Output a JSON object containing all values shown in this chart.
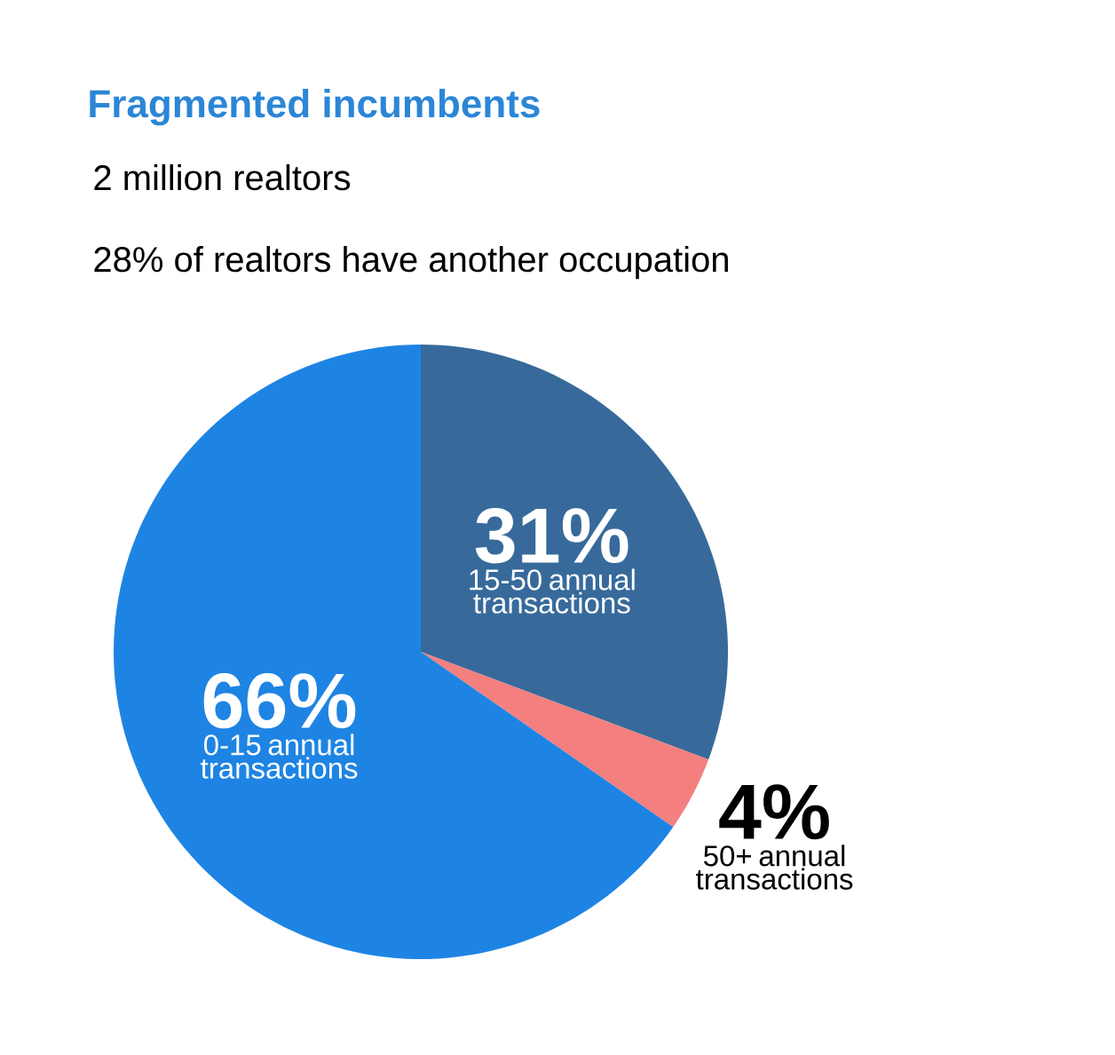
{
  "chart_data": {
    "type": "pie",
    "title": "Fragmented incumbents",
    "subtitle": "2 million realtors",
    "annotations": [
      "28% of realtors have another occupation"
    ],
    "categories": [
      "15-50 annual transactions",
      "50+ annual transactions",
      "0-15 annual transactions"
    ],
    "values": [
      31,
      4,
      66
    ],
    "value_labels": [
      "31%",
      "4%",
      "66%"
    ],
    "colors": [
      "#376a9b",
      "#f47f7f",
      "#1e84e3"
    ]
  }
}
